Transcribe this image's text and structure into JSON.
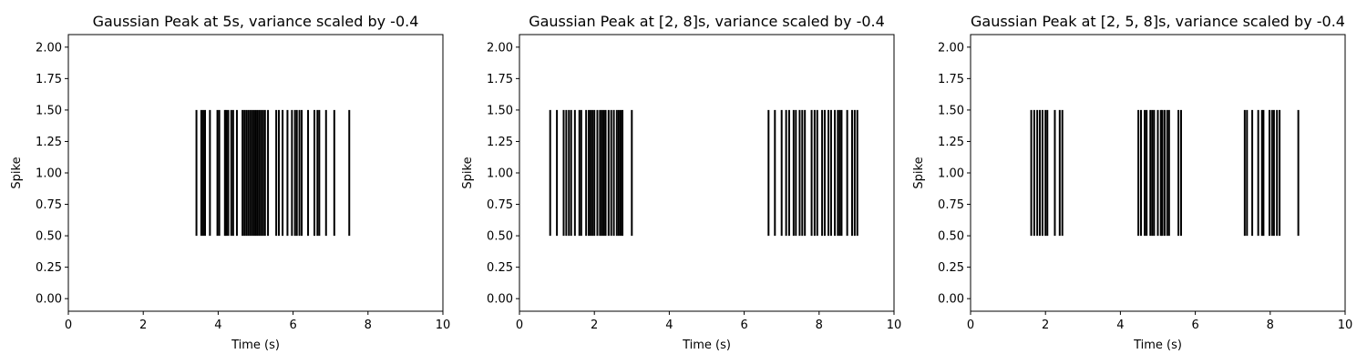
{
  "chart_data": [
    {
      "type": "eventplot",
      "title": "Gaussian Peak at 5s, variance scaled by -0.4",
      "xlabel": "Time (s)",
      "ylabel": "Spike",
      "xlim": [
        0,
        10
      ],
      "ylim": [
        -0.1,
        2.1
      ],
      "x_ticks": [
        0,
        2,
        4,
        6,
        8,
        10
      ],
      "y_ticks": [
        "0.00",
        "0.25",
        "0.50",
        "0.75",
        "1.00",
        "1.25",
        "1.50",
        "1.75",
        "2.00"
      ],
      "line_range": [
        0.5,
        1.5
      ],
      "spike_color": "#000000",
      "spike_times": [
        3.42,
        3.55,
        3.6,
        3.65,
        3.78,
        3.98,
        4.03,
        4.18,
        4.22,
        4.27,
        4.35,
        4.4,
        4.5,
        4.65,
        4.7,
        4.75,
        4.8,
        4.85,
        4.9,
        4.95,
        5.0,
        5.05,
        5.1,
        5.15,
        5.2,
        5.25,
        5.33,
        5.55,
        5.62,
        5.72,
        5.85,
        5.97,
        6.05,
        6.1,
        6.17,
        6.23,
        6.4,
        6.57,
        6.65,
        6.7,
        6.88,
        7.1,
        7.5
      ]
    },
    {
      "type": "eventplot",
      "title": "Gaussian Peak at [2, 8]s, variance scaled by -0.4",
      "xlabel": "Time (s)",
      "ylabel": "Spike",
      "xlim": [
        0,
        10
      ],
      "ylim": [
        -0.1,
        2.1
      ],
      "x_ticks": [
        0,
        2,
        4,
        6,
        8,
        10
      ],
      "y_ticks": [
        "0.00",
        "0.25",
        "0.50",
        "0.75",
        "1.00",
        "1.25",
        "1.50",
        "1.75",
        "2.00"
      ],
      "line_range": [
        0.5,
        1.5
      ],
      "spike_color": "#000000",
      "spike_times": [
        0.82,
        1.0,
        1.18,
        1.25,
        1.32,
        1.38,
        1.48,
        1.6,
        1.65,
        1.78,
        1.85,
        1.9,
        1.95,
        2.0,
        2.08,
        2.15,
        2.2,
        2.25,
        2.3,
        2.38,
        2.45,
        2.52,
        2.6,
        2.65,
        2.7,
        2.75,
        3.0,
        6.65,
        6.82,
        7.0,
        7.12,
        7.2,
        7.32,
        7.38,
        7.48,
        7.55,
        7.62,
        7.8,
        7.88,
        7.95,
        8.08,
        8.15,
        8.25,
        8.32,
        8.42,
        8.5,
        8.55,
        8.6,
        8.75,
        8.88,
        8.95,
        9.02
      ]
    },
    {
      "type": "eventplot",
      "title": "Gaussian Peak at [2, 5, 8]s, variance scaled by -0.4",
      "xlabel": "Time (s)",
      "ylabel": "Spike",
      "xlim": [
        0,
        10
      ],
      "ylim": [
        -0.1,
        2.1
      ],
      "x_ticks": [
        0,
        2,
        4,
        6,
        8,
        10
      ],
      "y_ticks": [
        "0.00",
        "0.25",
        "0.50",
        "0.75",
        "1.00",
        "1.25",
        "1.50",
        "1.75",
        "2.00"
      ],
      "line_range": [
        0.5,
        1.5
      ],
      "spike_color": "#000000",
      "spike_times": [
        1.62,
        1.7,
        1.78,
        1.85,
        1.92,
        2.0,
        2.05,
        2.25,
        2.38,
        2.45,
        4.48,
        4.55,
        4.65,
        4.7,
        4.8,
        4.85,
        4.9,
        5.0,
        5.08,
        5.12,
        5.18,
        5.25,
        5.3,
        5.55,
        5.62,
        7.32,
        7.38,
        7.52,
        7.68,
        7.78,
        7.82,
        7.98,
        8.05,
        8.1,
        8.18,
        8.25,
        8.75
      ]
    }
  ]
}
